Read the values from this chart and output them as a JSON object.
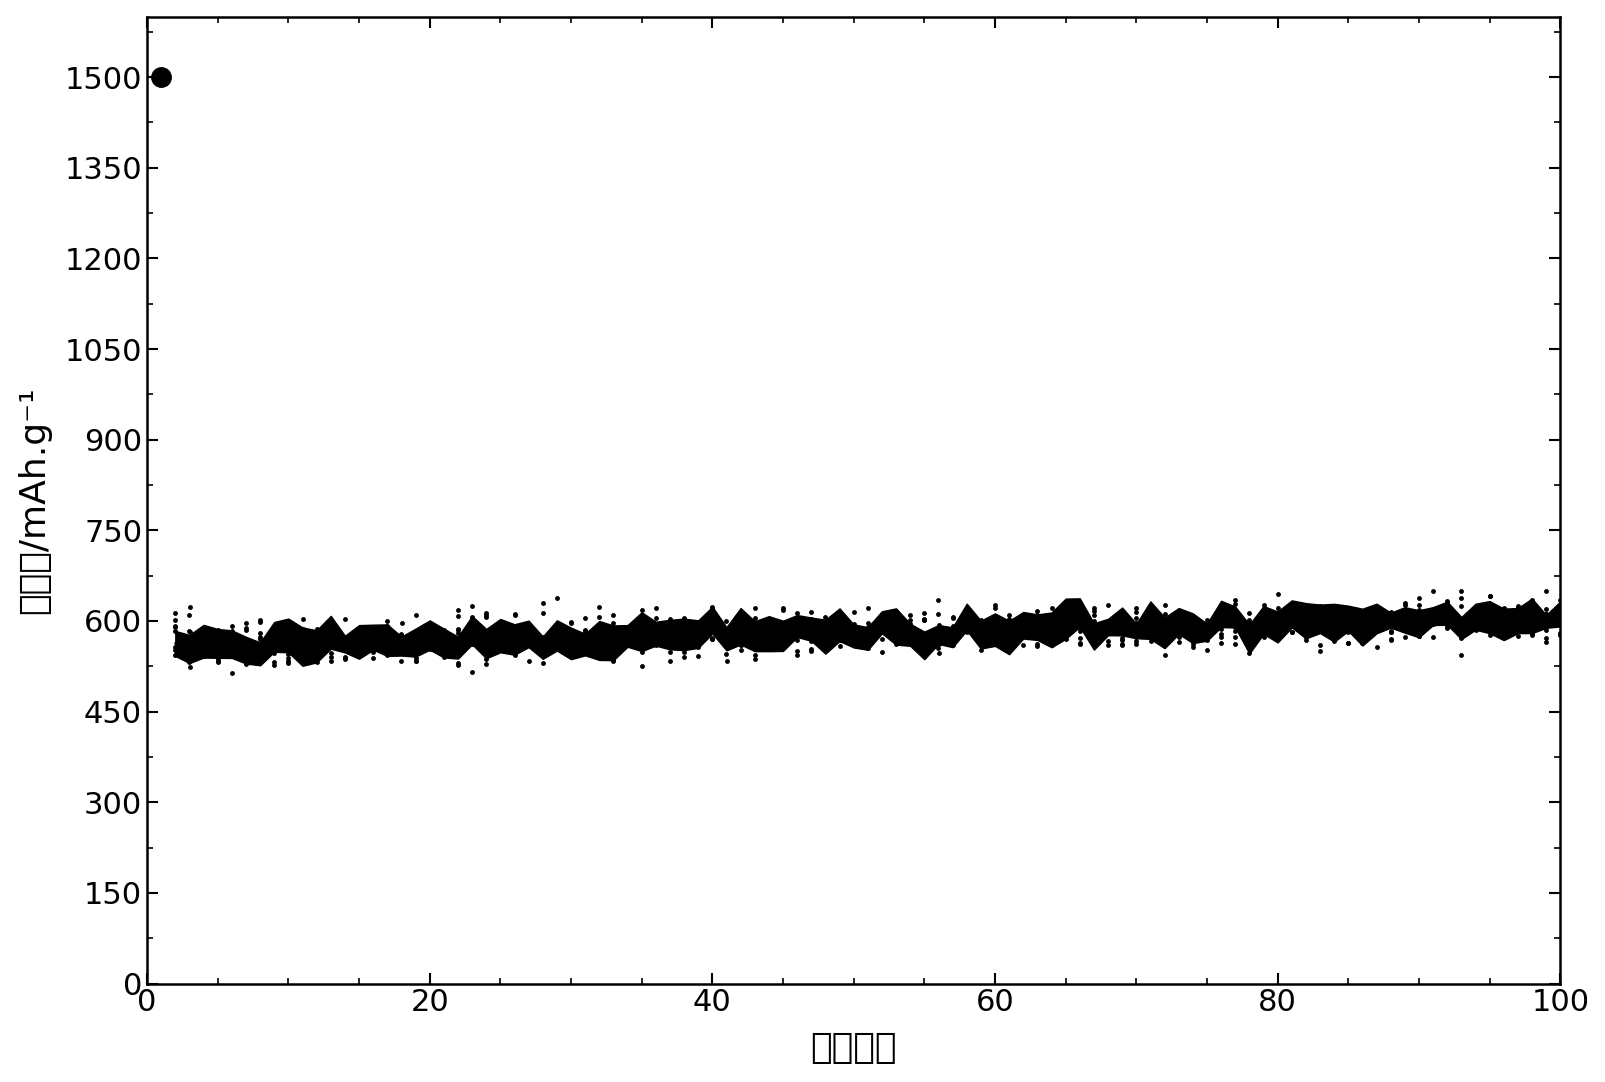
{
  "xlabel": "循环次数",
  "ylabel": "比容量/mAh.g⁻¹",
  "xlim": [
    0,
    100
  ],
  "ylim": [
    0,
    1600
  ],
  "xticks": [
    0,
    20,
    40,
    60,
    80,
    100
  ],
  "yticks": [
    0,
    150,
    300,
    450,
    600,
    750,
    900,
    1050,
    1200,
    1350,
    1500
  ],
  "first_point_x": 1,
  "first_point_y": 1500,
  "color": "#000000",
  "background_color": "#ffffff",
  "figsize": [
    16.06,
    10.82
  ],
  "dpi": 100,
  "xlabel_fontsize": 26,
  "ylabel_fontsize": 26,
  "tick_labelsize": 22
}
